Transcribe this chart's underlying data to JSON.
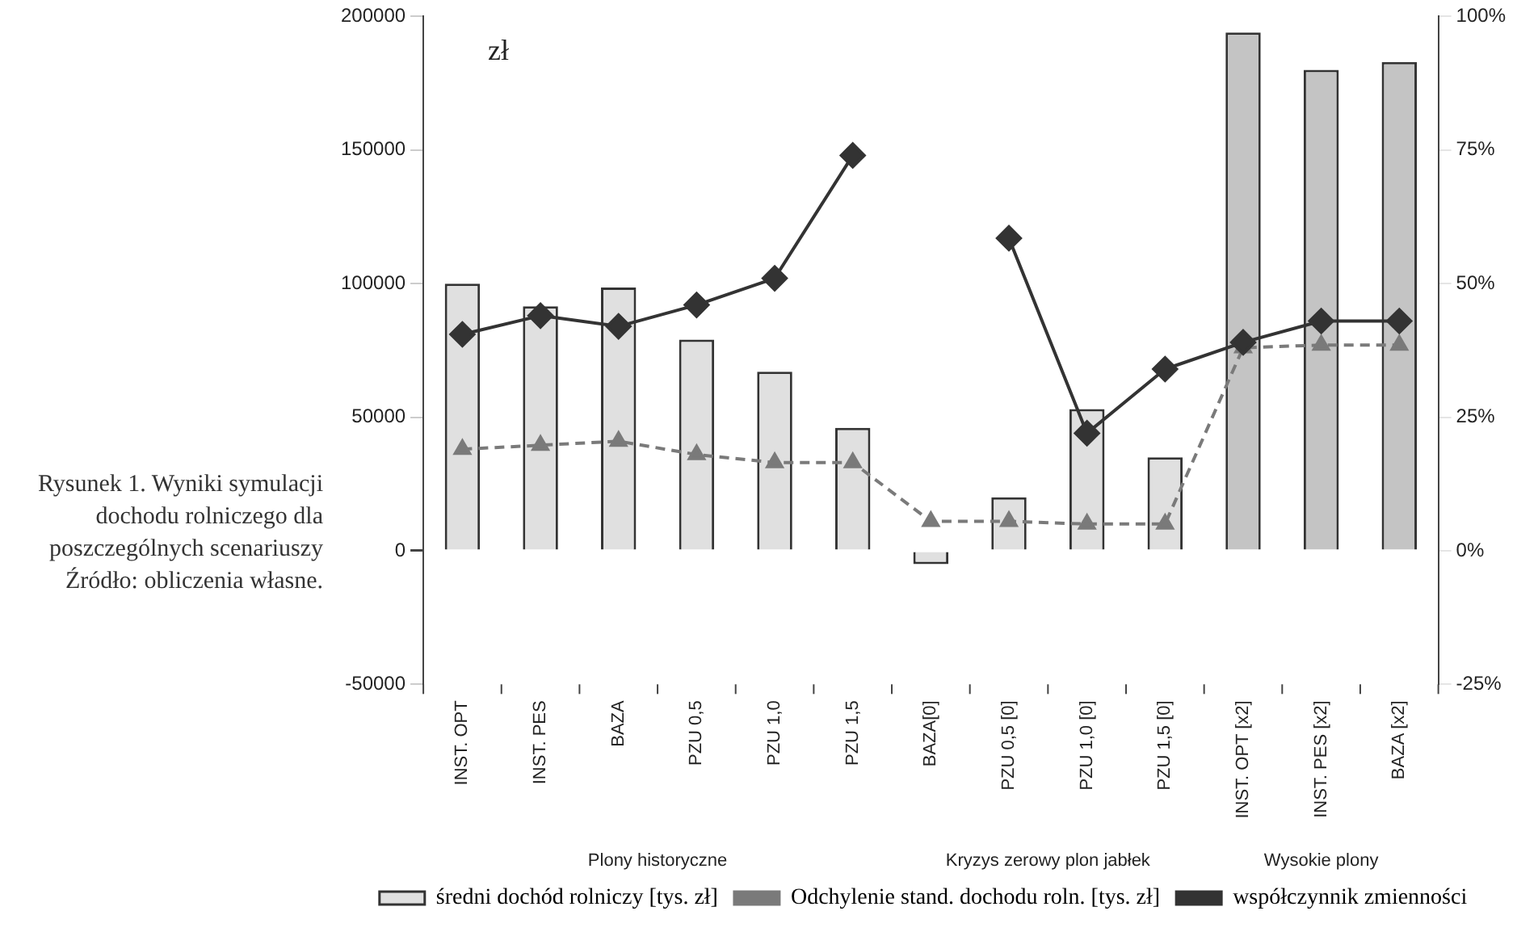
{
  "chart_data": {
    "type": "bar",
    "title": "Rysunek 1. Wyniki symulacji dochodu rolniczego dla poszczególnych scenariuszy",
    "ylabel": "zł",
    "categories": [
      "INST. OPT",
      "INST. PES",
      "BAZA",
      "PZU 0,5",
      "PZU 1,0",
      "PZU 1,5",
      "BAZA[0]",
      "PZU 0,5 [0]",
      "PZU 1,0 [0]",
      "PZU 1,5 [0]",
      "INST. OPT [x2]",
      "INST. PES [x2]",
      "BAZA [x2]"
    ],
    "series": [
      {
        "name": "średni dochód rolniczy [tys. zł]",
        "color": "#e0e0e0",
        "colors": [
          "#e0e0e0",
          "#e0e0e0",
          "#e0e0e0",
          "#e0e0e0",
          "#e0e0e0",
          "#e0e0e0",
          "#e0e0e0",
          "#e0e0e0",
          "#e0e0e0",
          "#e0e0e0",
          "#c4c4c4",
          "#c4c4c4",
          "#c4c4c4"
        ],
        "values": [
          100000,
          91500,
          98500,
          79000,
          67000,
          46000,
          -5000,
          20000,
          53000,
          35000,
          194000,
          180000,
          183000
        ]
      },
      {
        "name": "Odchylenie stand. dochodu roln. [tys. zł]",
        "type": "line",
        "color": "#7a7a7a",
        "marker": "triangle",
        "line_style": "dashed",
        "values": [
          38000,
          39500,
          41000,
          36000,
          33000,
          33000,
          11000,
          11000,
          10000,
          10000,
          76000,
          77000,
          77000
        ]
      },
      {
        "name": "współczynnik zmienności",
        "type": "line",
        "axis": "y2",
        "color": "#333333",
        "marker": "diamond",
        "line_style": "solid",
        "values": [
          40.5,
          44,
          42,
          46,
          51,
          74,
          null,
          58.5,
          22,
          34,
          39,
          43,
          43
        ]
      }
    ],
    "ylim": [
      -50000,
      200000
    ],
    "yticks": [
      -50000,
      0,
      50000,
      100000,
      150000,
      200000
    ],
    "y2lim": [
      -25,
      100
    ],
    "y2ticks": [
      {
        "value": -25,
        "label": "-25%"
      },
      {
        "value": 0,
        "label": "0%"
      },
      {
        "value": 25,
        "label": "25%"
      },
      {
        "value": 50,
        "label": "50%"
      },
      {
        "value": 75,
        "label": "75%"
      },
      {
        "value": 100,
        "label": "100%"
      }
    ],
    "grid": false,
    "legend": "bottom",
    "annotations": [
      "Plony historyczne",
      "Kryzys zerowy plon jabłek",
      "Wysokie plony",
      "Źródło: obliczenia własne."
    ]
  }
}
